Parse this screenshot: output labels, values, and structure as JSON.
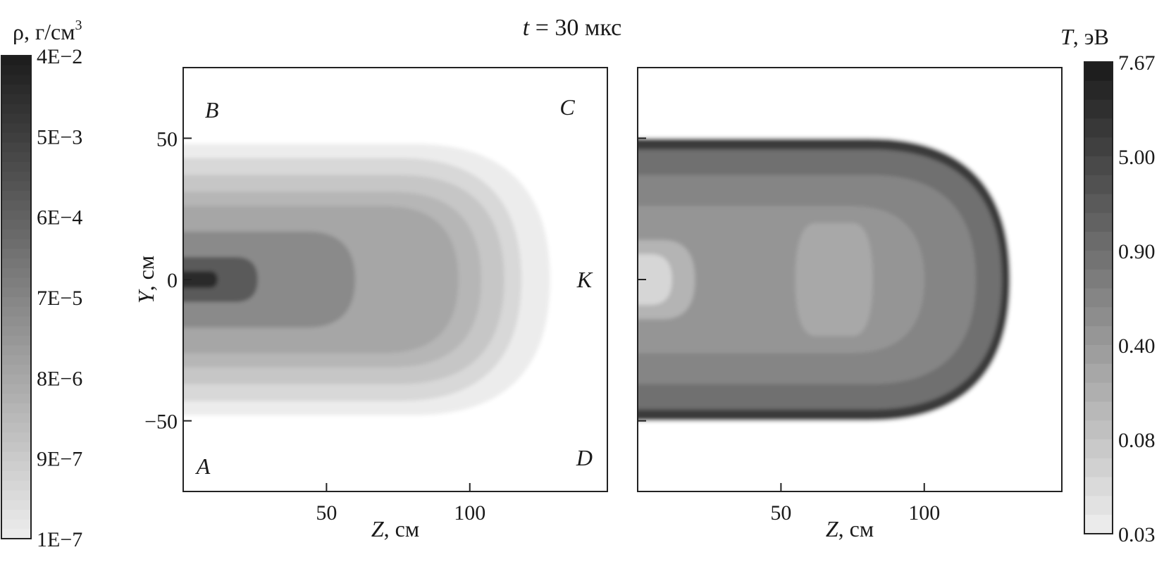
{
  "chart_data": [
    {
      "type": "heatmap",
      "title": "t = 30 мкс",
      "title_italic_part": "t",
      "title_rest": " = 30 мкс",
      "quantity": "density",
      "xlabel": "Z, см",
      "xlabel_italic_part": "Z",
      "xlabel_rest": ", см",
      "ylabel": "Y, см",
      "ylabel_italic_part": "Y",
      "ylabel_rest": ", см",
      "xlim": [
        0,
        148
      ],
      "ylim": [
        -75,
        75
      ],
      "x_ticks": [
        50,
        100
      ],
      "x_tick_labels": [
        "50",
        "100"
      ],
      "y_ticks": [
        50,
        0,
        -50
      ],
      "y_tick_labels": [
        "50",
        "0",
        "−50"
      ],
      "point_labels": [
        {
          "text": "B",
          "z": 10,
          "y": 60
        },
        {
          "text": "C",
          "z": 134,
          "y": 61
        },
        {
          "text": "K",
          "z": 140,
          "y": 0
        },
        {
          "text": "A",
          "z": 7,
          "y": -66
        },
        {
          "text": "D",
          "z": 140,
          "y": -63
        }
      ],
      "colorbar": {
        "title": "ρ, г/см",
        "title_sup": "3",
        "scale": "log",
        "labels": [
          "4E−2",
          "5E−3",
          "6E−4",
          "7E−5",
          "8E−6",
          "9E−7",
          "1E−7"
        ]
      },
      "contour_levels": [
        {
          "z_range": [
            0,
            128
          ],
          "y_half": 48,
          "shade": "#ececec"
        },
        {
          "z_range": [
            0,
            118
          ],
          "y_half": 43,
          "shade": "#d8d8d8"
        },
        {
          "z_range": [
            0,
            112
          ],
          "y_half": 37,
          "shade": "#c6c6c6"
        },
        {
          "z_range": [
            0,
            104
          ],
          "y_half": 31,
          "shade": "#b6b6b6"
        },
        {
          "z_range": [
            0,
            96
          ],
          "y_half": 26,
          "shade": "#a6a6a6"
        },
        {
          "z_range": [
            0,
            60
          ],
          "y_half": 17,
          "shade": "#8a8a8a"
        },
        {
          "z_range": [
            0,
            26
          ],
          "y_half": 8,
          "shade": "#5a5a5a"
        },
        {
          "z_range": [
            0,
            12
          ],
          "y_half": 3,
          "shade": "#2c2c2c"
        }
      ]
    },
    {
      "type": "heatmap",
      "quantity": "temperature",
      "xlabel": "Z, см",
      "xlabel_italic_part": "Z",
      "xlabel_rest": ", см",
      "xlim": [
        0,
        148
      ],
      "ylim": [
        -75,
        75
      ],
      "x_ticks": [
        50,
        100
      ],
      "x_tick_labels": [
        "50",
        "100"
      ],
      "y_ticks": [
        50,
        0,
        -50
      ],
      "colorbar": {
        "title": "T, эВ",
        "title_italic_part": "T",
        "title_rest": ", эВ",
        "scale": "log",
        "labels": [
          "7.67",
          "5.00",
          "0.90",
          "0.40",
          "0.08",
          "0.03"
        ]
      },
      "contour_levels": [
        {
          "z_range": [
            0,
            130
          ],
          "y_half": 50,
          "shade": "#3a3a3a"
        },
        {
          "z_range": [
            0,
            127
          ],
          "y_half": 46,
          "shade": "#707070"
        },
        {
          "z_range": [
            0,
            118
          ],
          "y_half": 37,
          "shade": "#858585"
        },
        {
          "z_range": [
            0,
            100
          ],
          "y_half": 26,
          "shade": "#959595"
        },
        {
          "z_range": [
            55,
            82
          ],
          "y_half": 20,
          "shade": "#a8a8a8"
        },
        {
          "z_range": [
            0,
            20
          ],
          "y_half": 14,
          "shade": "#b4b4b4"
        },
        {
          "z_range": [
            0,
            12
          ],
          "y_half": 9,
          "shade": "#d6d6d6"
        }
      ]
    }
  ]
}
